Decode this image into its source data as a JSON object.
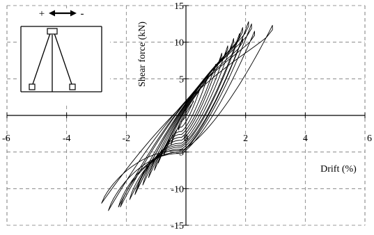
{
  "chart_data": {
    "type": "line",
    "xlabel": "Drift (%)",
    "ylabel": "Shear force (kN)",
    "xlim": [
      -6,
      6
    ],
    "ylim": [
      -15,
      15
    ],
    "x_ticks": [
      "-6",
      "-4",
      "-2",
      "0",
      "2",
      "4",
      "6"
    ],
    "y_ticks": [
      "15",
      "10",
      "5",
      "0",
      "-5",
      "-10",
      "-15"
    ],
    "grid": true,
    "grid_style": "dashed",
    "inset_symbols": {
      "plus": "+",
      "minus": "-"
    },
    "hysteresis_cycles": [
      {
        "amplitude": 0.25,
        "peak_pos": 2.0,
        "peak_neg": -2.0
      },
      {
        "amplitude": 0.5,
        "peak_pos": 4.0,
        "peak_neg": -4.0
      },
      {
        "amplitude": 0.75,
        "peak_pos": 5.5,
        "peak_neg": -5.5
      },
      {
        "amplitude": 1.0,
        "peak_pos": 7.0,
        "peak_neg": -6.5
      },
      {
        "amplitude": 1.2,
        "peak_pos": 8.5,
        "peak_neg": -7.5
      },
      {
        "amplitude": 1.4,
        "peak_pos": 9.5,
        "peak_neg": -8.5
      },
      {
        "amplitude": 1.6,
        "peak_pos": 10.5,
        "peak_neg": -9.5
      },
      {
        "amplitude": 1.8,
        "peak_pos": 11.2,
        "peak_neg": -10.2
      },
      {
        "amplitude": 1.9,
        "peak_pos": 12.0,
        "peak_neg": -10.8
      },
      {
        "amplitude": 2.1,
        "peak_pos": 12.8,
        "peak_neg": -11.5
      },
      {
        "amplitude": 2.2,
        "peak_pos": 12.5,
        "peak_neg": -12.5
      },
      {
        "amplitude": 2.9,
        "peak_pos": 12.3,
        "peak_neg": -12.0
      },
      {
        "amplitude": 2.3,
        "peak_pos": 11.5,
        "peak_neg": -13.0
      },
      {
        "amplitude": 1.9,
        "peak_pos": 10.5,
        "peak_neg": -12.5
      }
    ]
  }
}
